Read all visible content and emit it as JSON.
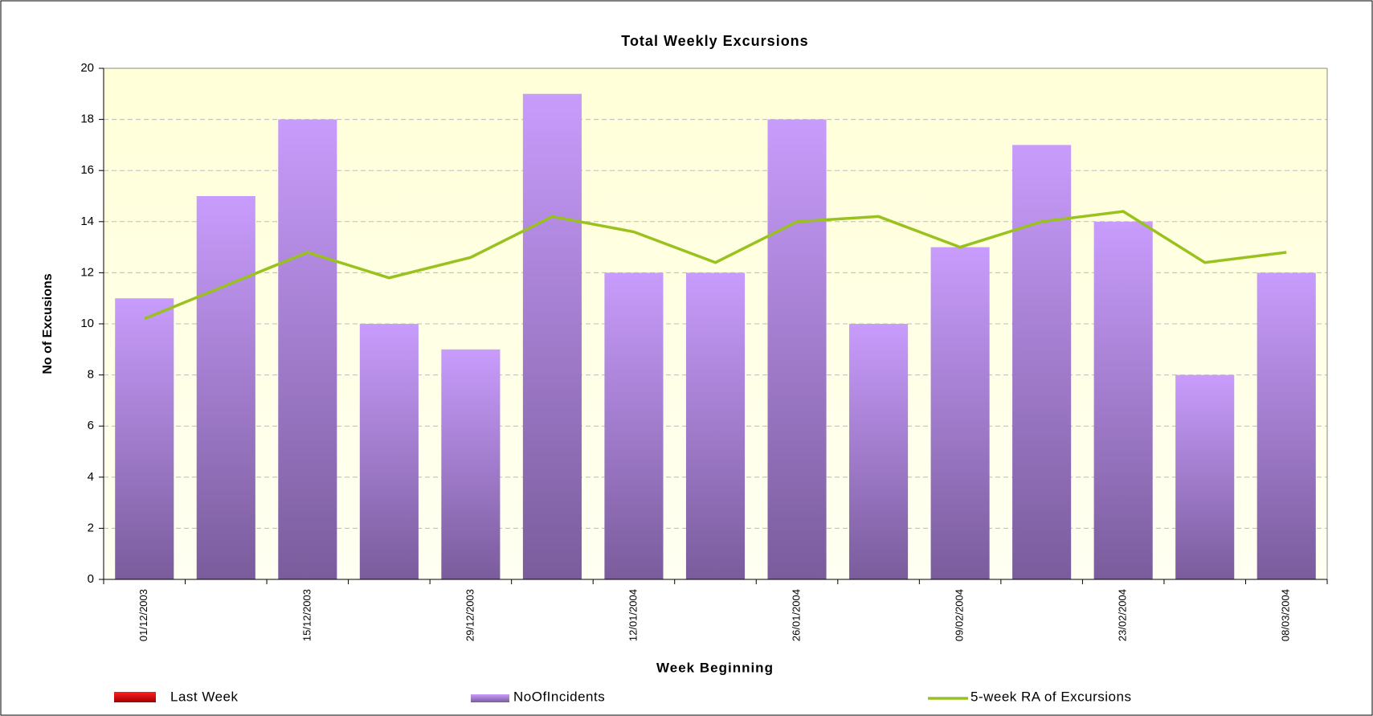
{
  "chart_data": {
    "type": "bar",
    "title": "Total Weekly Excursions",
    "xlabel": "Week Beginning",
    "ylabel": "No of Excusions",
    "categories": [
      "01/12/2003",
      null,
      "15/12/2003",
      null,
      "29/12/2003",
      null,
      "12/01/2004",
      null,
      "26/01/2004",
      null,
      "09/02/2004",
      null,
      "23/02/2004",
      null,
      "08/03/2004"
    ],
    "series": [
      {
        "name": "Last Week",
        "type": "bar",
        "color": "#cc0000",
        "values": [
          null,
          null,
          null,
          null,
          null,
          null,
          null,
          null,
          null,
          null,
          null,
          null,
          null,
          null,
          null
        ]
      },
      {
        "name": "NoOfIncidents",
        "type": "bar",
        "color": "#b48ce6",
        "values": [
          11,
          15,
          18,
          10,
          9,
          19,
          12,
          12,
          18,
          10,
          13,
          17,
          14,
          8,
          12
        ]
      },
      {
        "name": "5-week RA of Excursions",
        "type": "line",
        "color": "#99c21e",
        "values": [
          10.2,
          11.5,
          12.8,
          11.8,
          12.6,
          14.2,
          13.6,
          12.4,
          14.0,
          14.2,
          13.0,
          14.0,
          14.4,
          12.4,
          12.8
        ]
      }
    ],
    "ylim": [
      0,
      20
    ],
    "yticks": [
      0,
      2,
      4,
      6,
      8,
      10,
      12,
      14,
      16,
      18,
      20
    ],
    "grid": true
  }
}
